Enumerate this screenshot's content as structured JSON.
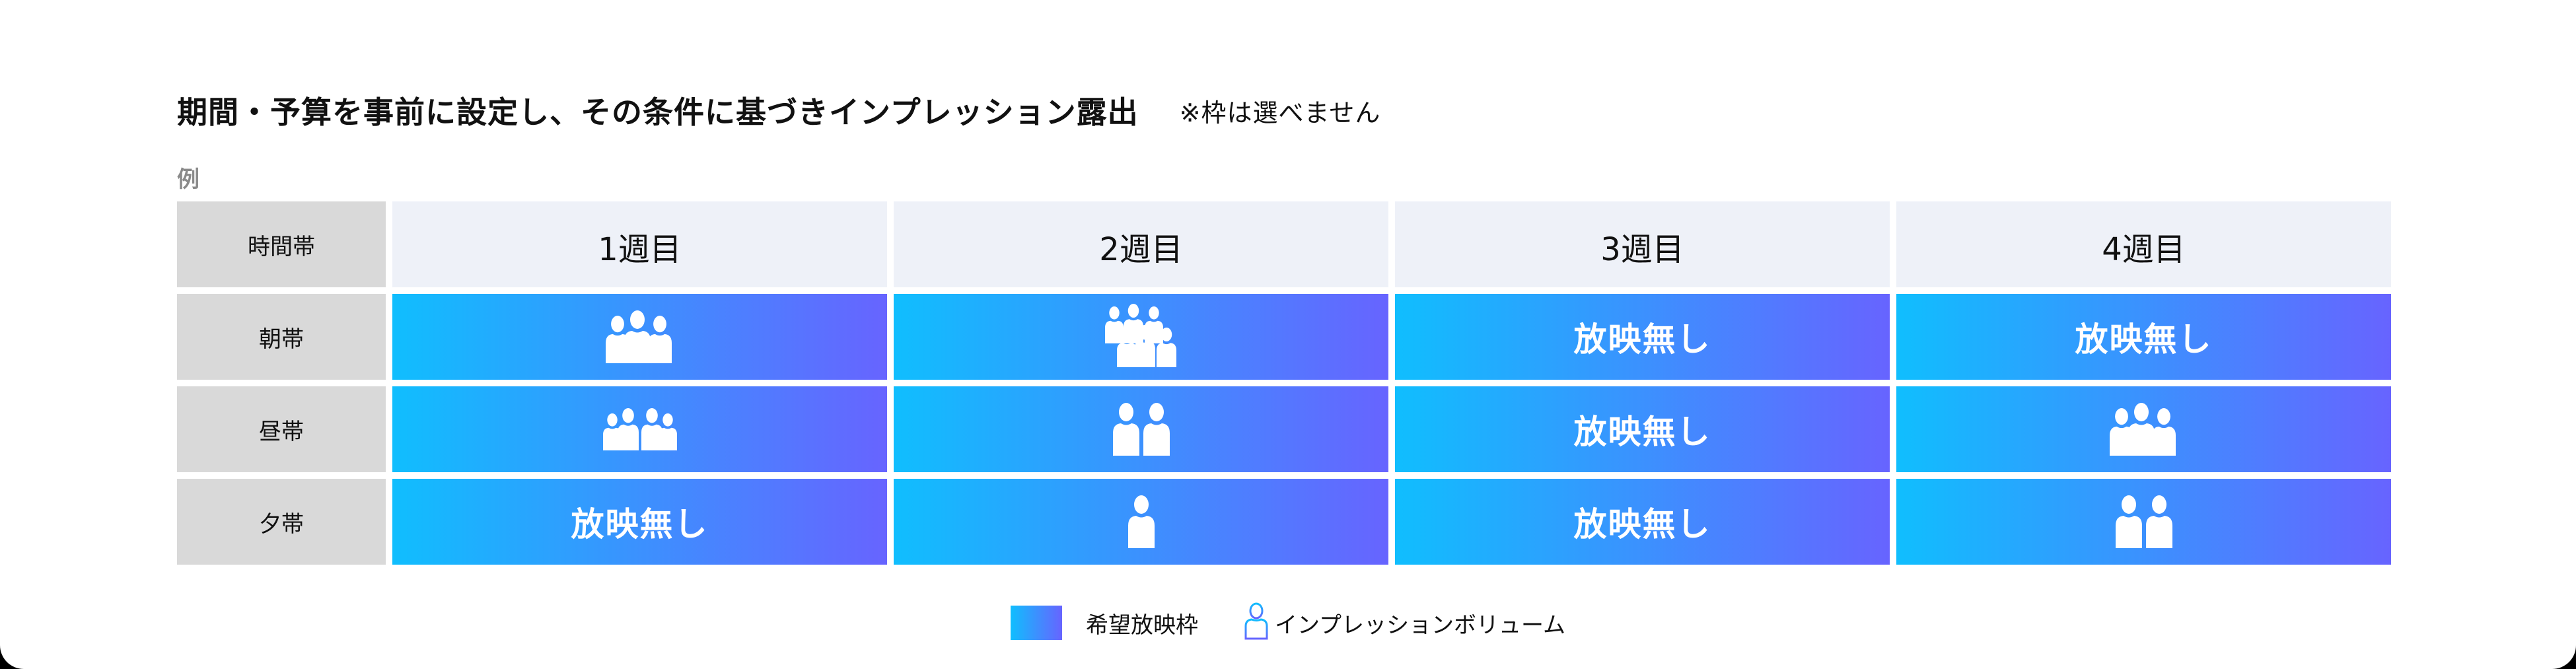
{
  "header": {
    "title": "期間・予算を事前に設定し、その条件に基づきインプレッション露出",
    "note": "※枠は選べません",
    "example_label": "例"
  },
  "table": {
    "corner_label": "時間帯",
    "columns": [
      "1週目",
      "2週目",
      "3週目",
      "4週目"
    ],
    "rows": [
      {
        "label": "朝帯",
        "cells": [
          {
            "type": "people",
            "count": 3,
            "icon": "people-group-3-icon"
          },
          {
            "type": "people",
            "count": 6,
            "icon": "people-crowd-6-icon"
          },
          {
            "type": "text",
            "text": "放映無し"
          },
          {
            "type": "text",
            "text": "放映無し"
          }
        ]
      },
      {
        "label": "昼帯",
        "cells": [
          {
            "type": "people",
            "count": 4,
            "icon": "people-group-4-icon"
          },
          {
            "type": "people",
            "count": 2,
            "icon": "people-pair-icon"
          },
          {
            "type": "text",
            "text": "放映無し"
          },
          {
            "type": "people",
            "count": 3,
            "icon": "people-group-3-icon"
          }
        ]
      },
      {
        "label": "夕帯",
        "cells": [
          {
            "type": "text",
            "text": "放映無し"
          },
          {
            "type": "people",
            "count": 1,
            "icon": "person-icon"
          },
          {
            "type": "text",
            "text": "放映無し"
          },
          {
            "type": "people",
            "count": 2,
            "icon": "people-pair-icon"
          }
        ]
      }
    ]
  },
  "legend": {
    "items": [
      {
        "label": "希望放映枠",
        "icon": "gradient-swatch"
      },
      {
        "label": "インプレッションボリューム",
        "icon": "person-outline-icon"
      }
    ]
  },
  "colors": {
    "gradient_start": "#10befe",
    "gradient_end": "#6764ff",
    "label_bg": "#d9d9d9",
    "header_bg": "#eef1f8",
    "example_text": "#8a8a8a"
  },
  "chart_data": {
    "type": "table",
    "title": "期間・予算を事前に設定し、その条件に基づきインプレッション露出",
    "subtitle": "※枠は選べません",
    "row_header": "時間帯",
    "categories": [
      "1週目",
      "2週目",
      "3週目",
      "4週目"
    ],
    "series": [
      {
        "name": "朝帯",
        "values": [
          3,
          6,
          "放映無し",
          "放映無し"
        ]
      },
      {
        "name": "昼帯",
        "values": [
          4,
          2,
          "放映無し",
          3
        ]
      },
      {
        "name": "夕帯",
        "values": [
          "放映無し",
          1,
          "放映無し",
          2
        ]
      }
    ],
    "legend": [
      "希望放映枠",
      "インプレッションボリューム"
    ],
    "value_meaning": "number of person icons = relative impression volume"
  }
}
